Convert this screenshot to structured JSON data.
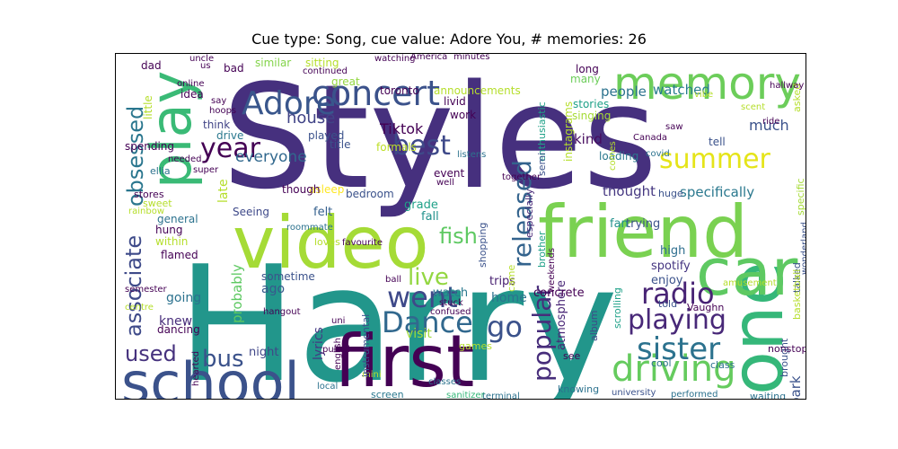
{
  "figure": {
    "title": "Cue type: Song, cue value: Adore You, # memories: 26"
  },
  "wordcloud": {
    "words": [
      {
        "text": "Styles",
        "color": "#46307e",
        "weight": 1.0
      },
      {
        "text": "Harry",
        "color": "#22968b",
        "weight": 0.98
      },
      {
        "text": "first",
        "color": "#440154",
        "weight": 0.55
      },
      {
        "text": "school",
        "color": "#3b528b",
        "weight": 0.5
      },
      {
        "text": "friend",
        "color": "#7ad151",
        "weight": 0.52
      },
      {
        "text": "video",
        "color": "#a5db36",
        "weight": 0.5
      },
      {
        "text": "one",
        "color": "#35b779",
        "weight": 0.5
      },
      {
        "text": "car",
        "color": "#5ec962",
        "weight": 0.45
      },
      {
        "text": "play",
        "color": "#3aba76",
        "weight": 0.45
      },
      {
        "text": "memory",
        "color": "#6ccd5a",
        "weight": 0.4
      },
      {
        "text": "concert",
        "color": "#3b528b",
        "weight": 0.35
      },
      {
        "text": "driving",
        "color": "#65cb5e",
        "weight": 0.33
      },
      {
        "text": "sister",
        "color": "#2c728e",
        "weight": 0.3
      },
      {
        "text": "playing",
        "color": "#482878",
        "weight": 0.28
      },
      {
        "text": "radio",
        "color": "#482475",
        "weight": 0.28
      },
      {
        "text": "Dance",
        "color": "#31688e",
        "weight": 0.28
      },
      {
        "text": "went",
        "color": "#3e4989",
        "weight": 0.28
      },
      {
        "text": "best",
        "color": "#3e4989",
        "weight": 0.28
      },
      {
        "text": "Adore",
        "color": "#39568c",
        "weight": 0.3
      },
      {
        "text": "year",
        "color": "#440154",
        "weight": 0.25
      },
      {
        "text": "summer",
        "color": "#e5e419",
        "weight": 0.25
      },
      {
        "text": "released",
        "color": "#33638d",
        "weight": 0.25
      },
      {
        "text": "popular",
        "color": "#472d7b",
        "weight": 0.25
      },
      {
        "text": "go",
        "color": "#3b528b",
        "weight": 0.25
      },
      {
        "text": "bus",
        "color": "#3b528b",
        "weight": 0.22
      },
      {
        "text": "obsessed",
        "color": "#2a768e",
        "weight": 0.22
      },
      {
        "text": "associate",
        "color": "#3e4a89",
        "weight": 0.22
      },
      {
        "text": "used",
        "color": "#46327e",
        "weight": 0.2
      },
      {
        "text": "fish",
        "color": "#5ec962",
        "weight": 0.2
      },
      {
        "text": "live",
        "color": "#93d741",
        "weight": 0.2
      },
      {
        "text": "Tiktok",
        "color": "#440154",
        "weight": 0.15
      },
      {
        "text": "house",
        "color": "#414487",
        "weight": 0.14
      },
      {
        "text": "everyone",
        "color": "#31688e",
        "weight": 0.14
      },
      {
        "text": "much",
        "color": "#3b528b",
        "weight": 0.15
      },
      {
        "text": "watched",
        "color": "#287c8e",
        "weight": 0.14
      },
      {
        "text": "people",
        "color": "#2c728e",
        "weight": 0.14
      },
      {
        "text": "specifically",
        "color": "#2a788e",
        "weight": 0.13
      },
      {
        "text": "thought",
        "color": "#453781",
        "weight": 0.13
      },
      {
        "text": "kind",
        "color": "#460b5e",
        "weight": 0.13
      },
      {
        "text": "park",
        "color": "#3b528b",
        "weight": 0.14
      },
      {
        "text": "knew",
        "color": "#472c7a",
        "weight": 0.12
      },
      {
        "text": "going",
        "color": "#2c728e",
        "weight": 0.12
      },
      {
        "text": "night",
        "color": "#404688",
        "weight": 0.11
      },
      {
        "text": "probably",
        "color": "#5ec962",
        "weight": 0.12
      },
      {
        "text": "lyrics",
        "color": "#443983",
        "weight": 0.11
      },
      {
        "text": "atmosphere",
        "color": "#482576",
        "weight": 0.11
      },
      {
        "text": "visit",
        "color": "#9fda3a",
        "weight": 0.11
      },
      {
        "text": "home",
        "color": "#2c728e",
        "weight": 0.11
      },
      {
        "text": "late",
        "color": "#b5de2b",
        "weight": 0.11
      },
      {
        "text": "ago",
        "color": "#38598c",
        "weight": 0.11
      },
      {
        "text": "felt",
        "color": "#34608d",
        "weight": 0.1
      },
      {
        "text": "grade",
        "color": "#1fa188",
        "weight": 0.1
      },
      {
        "text": "fall",
        "color": "#21918c",
        "weight": 0.1
      },
      {
        "text": "concrete",
        "color": "#440154",
        "weight": 0.1
      },
      {
        "text": "trying",
        "color": "#3b528b",
        "weight": 0.1
      },
      {
        "text": "fan",
        "color": "#21918c",
        "weight": 0.1
      },
      {
        "text": "high",
        "color": "#2e6e8e",
        "weight": 0.1
      },
      {
        "text": "spotify",
        "color": "#453581",
        "weight": 0.1
      },
      {
        "text": "enjoy",
        "color": "#3b528b",
        "weight": 0.1
      },
      {
        "text": "watch",
        "color": "#2a788e",
        "weight": 0.1
      },
      {
        "text": "trips",
        "color": "#482071",
        "weight": 0.1
      },
      {
        "text": "Seeing",
        "color": "#3e4989",
        "weight": 0.09
      },
      {
        "text": "spending",
        "color": "#440154",
        "weight": 0.09
      },
      {
        "text": "think",
        "color": "#414487",
        "weight": 0.09
      },
      {
        "text": "drive",
        "color": "#2a788e",
        "weight": 0.09
      },
      {
        "text": "idea",
        "color": "#440154",
        "weight": 0.09
      },
      {
        "text": "played",
        "color": "#3b528b",
        "weight": 0.09
      },
      {
        "text": "title",
        "color": "#3b528b",
        "weight": 0.09
      },
      {
        "text": "great",
        "color": "#93d741",
        "weight": 0.09
      },
      {
        "text": "sitting",
        "color": "#b5de2b",
        "weight": 0.09
      },
      {
        "text": "similar",
        "color": "#84d44b",
        "weight": 0.09
      },
      {
        "text": "bad",
        "color": "#440154",
        "weight": 0.09
      },
      {
        "text": "dad",
        "color": "#440154",
        "weight": 0.09
      },
      {
        "text": "long",
        "color": "#440154",
        "weight": 0.09
      },
      {
        "text": "many",
        "color": "#6ccd5a",
        "weight": 0.09
      },
      {
        "text": "stories",
        "color": "#1fa188",
        "weight": 0.09
      },
      {
        "text": "singing",
        "color": "#a5db36",
        "weight": 0.09
      },
      {
        "text": "loading",
        "color": "#2a788e",
        "weight": 0.09
      },
      {
        "text": "tell",
        "color": "#3b528b",
        "weight": 0.09
      },
      {
        "text": "asleep",
        "color": "#fde725",
        "weight": 0.09
      },
      {
        "text": "though",
        "color": "#440154",
        "weight": 0.09
      },
      {
        "text": "bedroom",
        "color": "#3b528b",
        "weight": 0.08
      },
      {
        "text": "event",
        "color": "#440154",
        "weight": 0.08
      },
      {
        "text": "work",
        "color": "#440154",
        "weight": 0.08
      },
      {
        "text": "livid",
        "color": "#440154",
        "weight": 0.08
      },
      {
        "text": "toronto",
        "color": "#440154",
        "weight": 0.08
      },
      {
        "text": "formals",
        "color": "#bddf26",
        "weight": 0.08
      },
      {
        "text": "instagrams",
        "color": "#b5de2b",
        "weight": 0.08
      },
      {
        "text": "announcements",
        "color": "#b5de2b",
        "weight": 0.08
      },
      {
        "text": "enthusiastic",
        "color": "#1fa188",
        "weight": 0.08
      },
      {
        "text": "especially",
        "color": "#482878",
        "weight": 0.08
      },
      {
        "text": "shopping",
        "color": "#3b528b",
        "weight": 0.08
      },
      {
        "text": "semi",
        "color": "#3b528b",
        "weight": 0.08
      },
      {
        "text": "huge",
        "color": "#3b528b",
        "weight": 0.08
      },
      {
        "text": "specific",
        "color": "#a5db36",
        "weight": 0.08
      },
      {
        "text": "asked",
        "color": "#b5de2b",
        "weight": 0.08
      },
      {
        "text": "came",
        "color": "#b5de2b",
        "weight": 0.08
      },
      {
        "text": "brother",
        "color": "#1fa188",
        "weight": 0.07
      },
      {
        "text": "scrolling",
        "color": "#1fa188",
        "weight": 0.07
      },
      {
        "text": "album",
        "color": "#3e4989",
        "weight": 0.07
      },
      {
        "text": "told",
        "color": "#3b528b",
        "weight": 0.07
      },
      {
        "text": "brought",
        "color": "#3b528b",
        "weight": 0.07
      },
      {
        "text": "talked",
        "color": "#3b528b",
        "weight": 0.07
      },
      {
        "text": "basketball",
        "color": "#b5de2b",
        "weight": 0.07
      },
      {
        "text": "Vaughn",
        "color": "#440154",
        "weight": 0.07
      },
      {
        "text": "nonstop",
        "color": "#440154",
        "weight": 0.07
      },
      {
        "text": "cool",
        "color": "#2c728e",
        "weight": 0.07
      },
      {
        "text": "class",
        "color": "#2c728e",
        "weight": 0.07
      },
      {
        "text": "waiting",
        "color": "#2c728e",
        "weight": 0.07
      },
      {
        "text": "knowing",
        "color": "#2c728e",
        "weight": 0.07
      },
      {
        "text": "university",
        "color": "#3b528b",
        "weight": 0.07
      },
      {
        "text": "performed",
        "color": "#2c728e",
        "weight": 0.07
      },
      {
        "text": "see",
        "color": "#440154",
        "weight": 0.07
      },
      {
        "text": "games",
        "color": "#b5de2b",
        "weight": 0.07
      },
      {
        "text": "screen",
        "color": "#2a788e",
        "weight": 0.07
      },
      {
        "text": "terminal",
        "color": "#2c728e",
        "weight": 0.07
      },
      {
        "text": "classes",
        "color": "#2c728e",
        "weight": 0.07
      },
      {
        "text": "sanitizer",
        "color": "#35b779",
        "weight": 0.07
      },
      {
        "text": "english",
        "color": "#440154",
        "weight": 0.07
      },
      {
        "text": "pulled",
        "color": "#440154",
        "weight": 0.07
      },
      {
        "text": "local",
        "color": "#2c728e",
        "weight": 0.07
      },
      {
        "text": "mini",
        "color": "#b5de2b",
        "weight": 0.07
      },
      {
        "text": "instrumental",
        "color": "#3b528b",
        "weight": 0.07
      },
      {
        "text": "sometime",
        "color": "#3b528b",
        "weight": 0.07
      },
      {
        "text": "hangout",
        "color": "#440154",
        "weight": 0.07
      },
      {
        "text": "uni",
        "color": "#440154",
        "weight": 0.07
      },
      {
        "text": "confused",
        "color": "#440154",
        "weight": 0.07
      },
      {
        "text": "stuck",
        "color": "#440154",
        "weight": 0.07
      },
      {
        "text": "weekends",
        "color": "#440154",
        "weight": 0.07
      },
      {
        "text": "ball",
        "color": "#440154",
        "weight": 0.07
      },
      {
        "text": "loves",
        "color": "#b5de2b",
        "weight": 0.07
      },
      {
        "text": "favourite",
        "color": "#440154",
        "weight": 0.07
      },
      {
        "text": "roommate",
        "color": "#2c728e",
        "weight": 0.07
      },
      {
        "text": "flamed",
        "color": "#440154",
        "weight": 0.07
      },
      {
        "text": "hung",
        "color": "#440154",
        "weight": 0.07
      },
      {
        "text": "general",
        "color": "#2c728e",
        "weight": 0.07
      },
      {
        "text": "within",
        "color": "#b5de2b",
        "weight": 0.07
      },
      {
        "text": "dancing",
        "color": "#440154",
        "weight": 0.07
      },
      {
        "text": "centre",
        "color": "#b5de2b",
        "weight": 0.07
      },
      {
        "text": "semester",
        "color": "#440154",
        "weight": 0.07
      },
      {
        "text": "hearted",
        "color": "#440154",
        "weight": 0.07
      },
      {
        "text": "stores",
        "color": "#440154",
        "weight": 0.07
      },
      {
        "text": "sweet",
        "color": "#b5de2b",
        "weight": 0.07
      },
      {
        "text": "ellia",
        "color": "#2c728e",
        "weight": 0.07
      },
      {
        "text": "super",
        "color": "#440154",
        "weight": 0.07
      },
      {
        "text": "needed",
        "color": "#440154",
        "weight": 0.07
      },
      {
        "text": "rainbow",
        "color": "#b5de2b",
        "weight": 0.07
      },
      {
        "text": "little",
        "color": "#b5de2b",
        "weight": 0.07
      },
      {
        "text": "hoops",
        "color": "#440154",
        "weight": 0.07
      },
      {
        "text": "say",
        "color": "#440154",
        "weight": 0.07
      },
      {
        "text": "online",
        "color": "#440154",
        "weight": 0.07
      },
      {
        "text": "uncle",
        "color": "#440154",
        "weight": 0.07
      },
      {
        "text": "us",
        "color": "#440154",
        "weight": 0.07
      },
      {
        "text": "continued",
        "color": "#440154",
        "weight": 0.07
      },
      {
        "text": "watching",
        "color": "#440154",
        "weight": 0.07
      },
      {
        "text": "America",
        "color": "#440154",
        "weight": 0.07
      },
      {
        "text": "minutes",
        "color": "#440154",
        "weight": 0.07
      },
      {
        "text": "listens",
        "color": "#2c728e",
        "weight": 0.07
      },
      {
        "text": "together",
        "color": "#440154",
        "weight": 0.07
      },
      {
        "text": "well",
        "color": "#440154",
        "weight": 0.07
      },
      {
        "text": "covid",
        "color": "#2c728e",
        "weight": 0.07
      },
      {
        "text": "Canada",
        "color": "#440154",
        "weight": 0.07
      },
      {
        "text": "comes",
        "color": "#b5de2b",
        "weight": 0.07
      },
      {
        "text": "saw",
        "color": "#440154",
        "weight": 0.07
      },
      {
        "text": "vibe",
        "color": "#b5de2b",
        "weight": 0.07
      },
      {
        "text": "scent",
        "color": "#b5de2b",
        "weight": 0.07
      },
      {
        "text": "hallway",
        "color": "#440154",
        "weight": 0.07
      },
      {
        "text": "ride",
        "color": "#440154",
        "weight": 0.07
      },
      {
        "text": "community",
        "color": "#3b528b",
        "weight": 0.07
      },
      {
        "text": "wonderland",
        "color": "#3b528b",
        "weight": 0.07
      },
      {
        "text": "amusement",
        "color": "#b5de2b",
        "weight": 0.07
      }
    ]
  }
}
